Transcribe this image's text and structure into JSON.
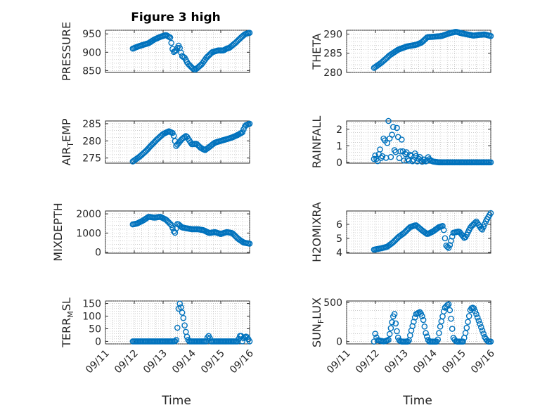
{
  "chart_data": {
    "type": "scatter",
    "title": "Figure 3 high",
    "x_time_labels": [
      "09/11",
      "09/12",
      "09/13",
      "09/14",
      "09/15",
      "09/16"
    ],
    "x_range_days": [
      0,
      5
    ],
    "xlabel": "Time",
    "marker_color": "#0072BD",
    "grid": true,
    "panels": [
      {
        "name": "pressure",
        "ylabel": "PRESSURE",
        "ylim": [
          845,
          960
        ],
        "yticks": [
          850,
          900,
          950
        ],
        "ytick_labels": [
          "850",
          "900",
          "950"
        ],
        "x_start": 0.95,
        "x_end": 5.0,
        "anchors": [
          [
            0.95,
            910
          ],
          [
            1.1,
            915
          ],
          [
            1.3,
            920
          ],
          [
            1.5,
            925
          ],
          [
            1.7,
            935
          ],
          [
            1.9,
            942
          ],
          [
            2.1,
            947
          ],
          [
            2.25,
            940
          ],
          [
            2.35,
            900
          ],
          [
            2.45,
            905
          ],
          [
            2.55,
            920
          ],
          [
            2.65,
            890
          ],
          [
            2.75,
            885
          ],
          [
            2.85,
            870
          ],
          [
            3.0,
            858
          ],
          [
            3.1,
            852
          ],
          [
            3.2,
            858
          ],
          [
            3.35,
            868
          ],
          [
            3.5,
            885
          ],
          [
            3.7,
            900
          ],
          [
            3.9,
            905
          ],
          [
            4.1,
            905
          ],
          [
            4.2,
            910
          ],
          [
            4.3,
            912
          ],
          [
            4.5,
            925
          ],
          [
            4.7,
            940
          ],
          [
            4.85,
            950
          ],
          [
            5.0,
            953
          ]
        ]
      },
      {
        "name": "theta",
        "ylabel": "THETA",
        "ylim": [
          280,
          291
        ],
        "yticks": [
          280,
          285,
          290
        ],
        "ytick_labels": [
          "280",
          "285",
          "290"
        ],
        "x_start": 0.95,
        "x_end": 5.0,
        "anchors": [
          [
            0.95,
            281.2
          ],
          [
            1.2,
            282.5
          ],
          [
            1.5,
            284.5
          ],
          [
            1.8,
            286
          ],
          [
            2.1,
            286.8
          ],
          [
            2.4,
            287.2
          ],
          [
            2.6,
            287.8
          ],
          [
            2.8,
            289.2
          ],
          [
            3.0,
            289.3
          ],
          [
            3.3,
            289.5
          ],
          [
            3.6,
            290.3
          ],
          [
            3.8,
            290.6
          ],
          [
            4.0,
            290.2
          ],
          [
            4.2,
            289.9
          ],
          [
            4.4,
            289.6
          ],
          [
            4.6,
            289.8
          ],
          [
            4.8,
            289.9
          ],
          [
            5.0,
            289.5
          ]
        ]
      },
      {
        "name": "air-temp",
        "ylabel_main": "AIR",
        "ylabel_sub": "T",
        "ylabel_tail": "EMP",
        "ylim": [
          273.5,
          285.8
        ],
        "yticks": [
          275,
          280,
          285
        ],
        "ytick_labels": [
          "275",
          "280",
          "285"
        ],
        "x_start": 0.95,
        "x_end": 5.0,
        "anchors": [
          [
            0.95,
            274
          ],
          [
            1.2,
            275.5
          ],
          [
            1.4,
            277
          ],
          [
            1.6,
            278.8
          ],
          [
            1.8,
            280.5
          ],
          [
            2.0,
            282
          ],
          [
            2.2,
            282.8
          ],
          [
            2.35,
            282.2
          ],
          [
            2.45,
            278.5
          ],
          [
            2.55,
            279.5
          ],
          [
            2.65,
            280.5
          ],
          [
            2.8,
            281.5
          ],
          [
            3.0,
            279
          ],
          [
            3.15,
            279.2
          ],
          [
            3.3,
            278
          ],
          [
            3.45,
            277.3
          ],
          [
            3.6,
            278.2
          ],
          [
            3.8,
            279.5
          ],
          [
            4.0,
            280
          ],
          [
            4.2,
            280.5
          ],
          [
            4.4,
            281
          ],
          [
            4.6,
            281.8
          ],
          [
            4.75,
            282.5
          ],
          [
            4.85,
            284.5
          ],
          [
            5.0,
            285
          ]
        ]
      },
      {
        "name": "rainfall",
        "ylabel": "RAINFALL",
        "ylim": [
          -0.05,
          2.5
        ],
        "yticks": [
          0,
          1,
          2
        ],
        "ytick_labels": [
          "0",
          "1",
          "2"
        ],
        "x_start": 0.95,
        "x_end": 5.0,
        "anchors": [
          [
            0.95,
            0.2
          ],
          [
            1.1,
            0.3
          ],
          [
            1.2,
            0.6
          ],
          [
            1.3,
            0.9
          ],
          [
            1.4,
            1.3
          ],
          [
            1.5,
            1.6
          ],
          [
            1.6,
            1.2
          ],
          [
            1.7,
            1.5
          ],
          [
            1.8,
            1.0
          ],
          [
            1.9,
            0.8
          ],
          [
            2.0,
            0.5
          ],
          [
            2.1,
            0.3
          ],
          [
            2.2,
            0.3
          ],
          [
            2.3,
            0.2
          ],
          [
            2.4,
            0.35
          ],
          [
            2.5,
            0.2
          ],
          [
            2.6,
            0.15
          ],
          [
            2.7,
            0.1
          ],
          [
            2.8,
            0.2
          ],
          [
            3.0,
            0.05
          ],
          [
            3.2,
            0.0
          ],
          [
            5.0,
            0.0
          ]
        ]
      },
      {
        "name": "mixdepth",
        "ylabel": "MIXDEPTH",
        "ylim": [
          -50,
          2150
        ],
        "yticks": [
          0,
          1000,
          2000
        ],
        "ytick_labels": [
          "0",
          "1000",
          "2000"
        ],
        "x_start": 0.95,
        "x_end": 5.0,
        "anchors": [
          [
            0.95,
            1450
          ],
          [
            1.1,
            1500
          ],
          [
            1.3,
            1650
          ],
          [
            1.5,
            1850
          ],
          [
            1.7,
            1800
          ],
          [
            1.9,
            1850
          ],
          [
            2.1,
            1700
          ],
          [
            2.3,
            1400
          ],
          [
            2.4,
            950
          ],
          [
            2.5,
            1500
          ],
          [
            2.65,
            1300
          ],
          [
            2.8,
            1250
          ],
          [
            3.0,
            1200
          ],
          [
            3.2,
            1200
          ],
          [
            3.4,
            1150
          ],
          [
            3.6,
            1000
          ],
          [
            3.8,
            1050
          ],
          [
            4.0,
            950
          ],
          [
            4.2,
            1050
          ],
          [
            4.4,
            1000
          ],
          [
            4.6,
            700
          ],
          [
            4.8,
            500
          ],
          [
            5.0,
            450
          ]
        ]
      },
      {
        "name": "h2omixra",
        "ylabel": "H2OMIXRA",
        "ylim": [
          3.95,
          6.95
        ],
        "yticks": [
          4,
          5,
          6
        ],
        "ytick_labels": [
          "4",
          "5",
          "6"
        ],
        "x_start": 0.95,
        "x_end": 5.0,
        "anchors": [
          [
            0.95,
            4.2
          ],
          [
            1.2,
            4.3
          ],
          [
            1.4,
            4.4
          ],
          [
            1.6,
            4.7
          ],
          [
            1.8,
            5.1
          ],
          [
            2.0,
            5.4
          ],
          [
            2.2,
            5.8
          ],
          [
            2.4,
            5.95
          ],
          [
            2.6,
            5.6
          ],
          [
            2.8,
            5.3
          ],
          [
            3.0,
            5.5
          ],
          [
            3.2,
            5.8
          ],
          [
            3.35,
            5.9
          ],
          [
            3.45,
            4.5
          ],
          [
            3.55,
            4.3
          ],
          [
            3.7,
            5.4
          ],
          [
            3.9,
            5.5
          ],
          [
            4.1,
            5.0
          ],
          [
            4.3,
            5.8
          ],
          [
            4.5,
            6.2
          ],
          [
            4.7,
            5.6
          ],
          [
            4.85,
            6.3
          ],
          [
            5.0,
            6.8
          ]
        ]
      },
      {
        "name": "terr-msl",
        "ylabel_main": "TERR",
        "ylabel_sub": "M",
        "ylabel_tail": "SL",
        "ylim": [
          -10,
          160
        ],
        "yticks": [
          0,
          50,
          100,
          150
        ],
        "ytick_labels": [
          "0",
          "50",
          "100",
          "150"
        ],
        "x_start": 0.95,
        "x_end": 5.0,
        "anchors": [
          [
            0.95,
            0
          ],
          [
            2.3,
            0
          ],
          [
            2.4,
            0
          ],
          [
            2.45,
            2
          ],
          [
            2.5,
            60
          ],
          [
            2.55,
            155
          ],
          [
            2.6,
            145
          ],
          [
            2.65,
            120
          ],
          [
            2.7,
            95
          ],
          [
            2.75,
            60
          ],
          [
            2.8,
            30
          ],
          [
            2.85,
            10
          ],
          [
            2.9,
            0
          ],
          [
            3.5,
            0
          ],
          [
            3.55,
            20
          ],
          [
            3.6,
            22
          ],
          [
            3.65,
            0
          ],
          [
            4.6,
            0
          ],
          [
            4.65,
            20
          ],
          [
            4.7,
            25
          ],
          [
            4.75,
            0
          ],
          [
            4.8,
            15
          ],
          [
            4.9,
            20
          ],
          [
            5.0,
            0
          ]
        ]
      },
      {
        "name": "sun-flux",
        "ylabel_main": "SUN",
        "ylabel_sub": "F",
        "ylabel_tail": "LUX",
        "ylim": [
          -30,
          520
        ],
        "yticks": [
          0,
          500
        ],
        "ytick_labels": [
          "0",
          "500"
        ],
        "x_start": 0.95,
        "x_end": 5.0,
        "anchors": [
          [
            0.95,
            0
          ],
          [
            1.0,
            120
          ],
          [
            1.05,
            20
          ],
          [
            1.3,
            0
          ],
          [
            1.45,
            20
          ],
          [
            1.55,
            200
          ],
          [
            1.65,
            380
          ],
          [
            1.72,
            180
          ],
          [
            1.8,
            20
          ],
          [
            1.9,
            0
          ],
          [
            2.15,
            0
          ],
          [
            2.25,
            150
          ],
          [
            2.4,
            350
          ],
          [
            2.55,
            380
          ],
          [
            2.65,
            300
          ],
          [
            2.75,
            100
          ],
          [
            2.85,
            0
          ],
          [
            3.15,
            0
          ],
          [
            3.25,
            200
          ],
          [
            3.4,
            430
          ],
          [
            3.5,
            470
          ],
          [
            3.55,
            480
          ],
          [
            3.62,
            300
          ],
          [
            3.7,
            50
          ],
          [
            3.8,
            0
          ],
          [
            4.05,
            0
          ],
          [
            4.15,
            150
          ],
          [
            4.3,
            420
          ],
          [
            4.4,
            440
          ],
          [
            4.5,
            350
          ],
          [
            4.6,
            250
          ],
          [
            4.7,
            150
          ],
          [
            4.8,
            50
          ],
          [
            4.9,
            0
          ],
          [
            5.0,
            0
          ]
        ]
      }
    ]
  }
}
